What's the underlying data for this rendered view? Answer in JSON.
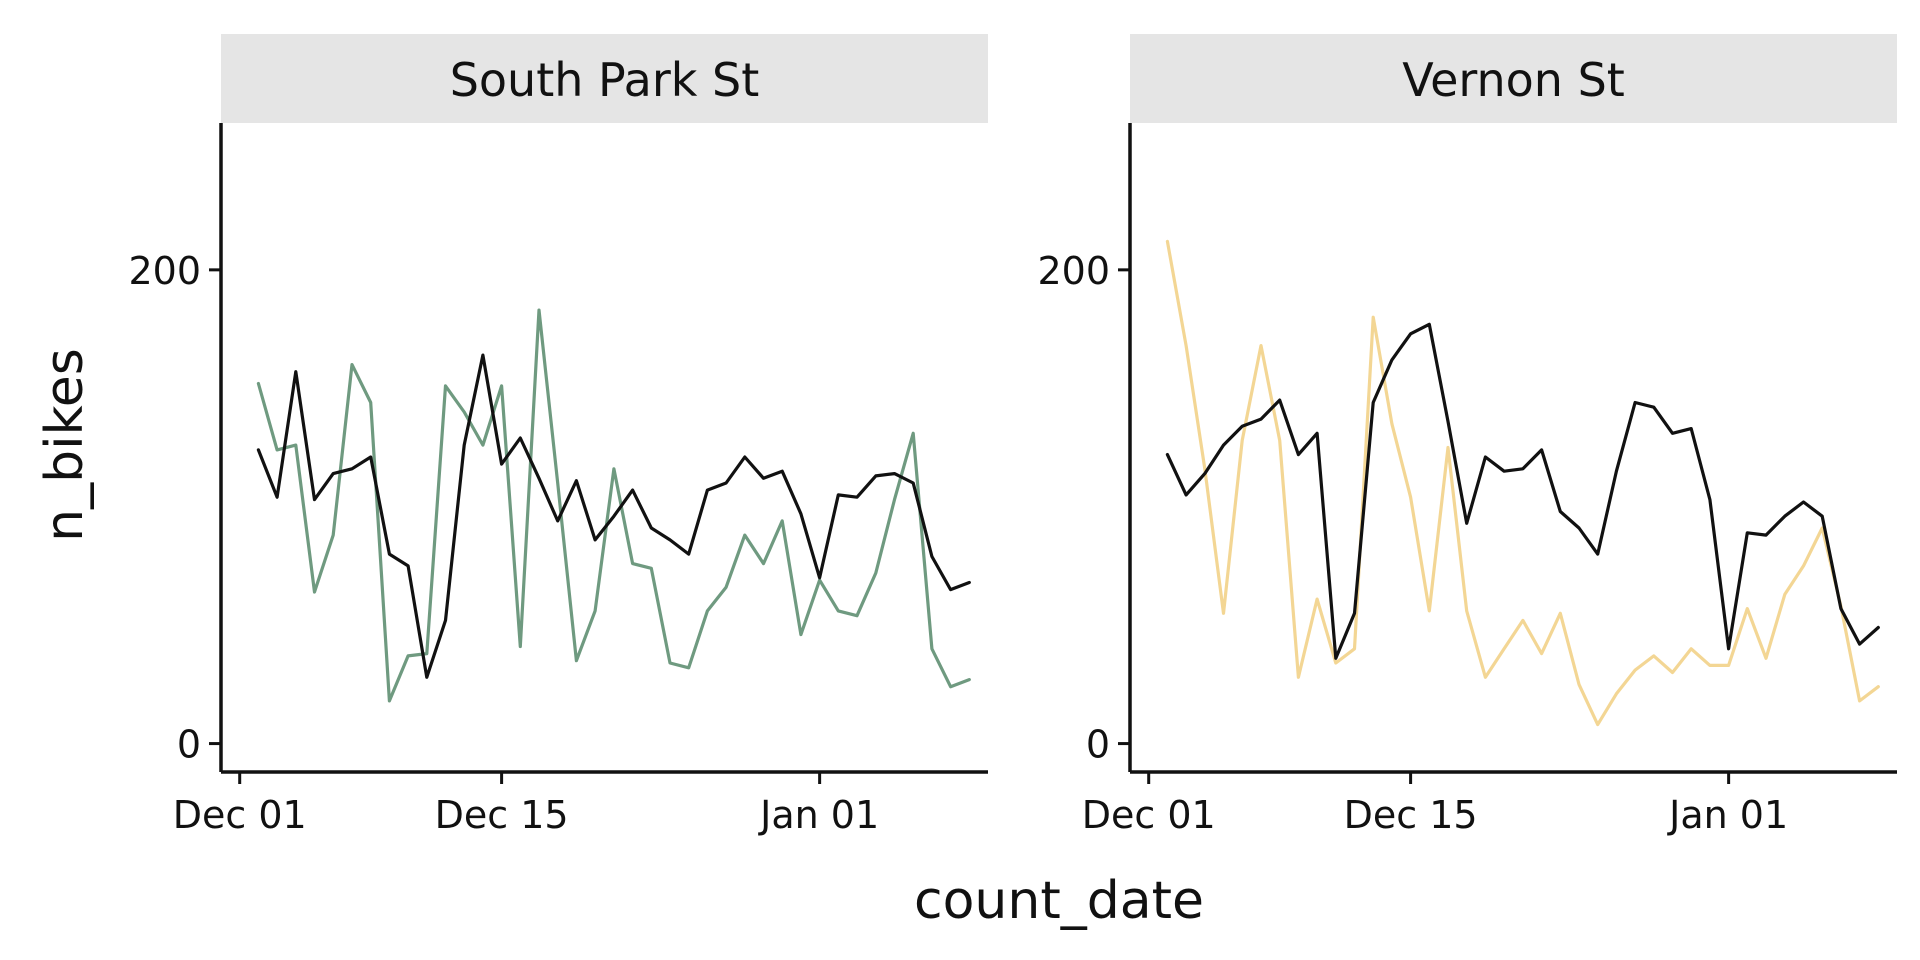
{
  "chart_data": {
    "type": "line",
    "xlabel": "count_date",
    "ylabel": "n_bikes",
    "ylim": [
      -12,
      262
    ],
    "xlim": [
      "2021-11-30",
      "2022-01-10"
    ],
    "x_ticks": [
      {
        "date": "2021-12-01",
        "label": "Dec 01"
      },
      {
        "date": "2021-12-15",
        "label": "Dec 15"
      },
      {
        "date": "2022-01-01",
        "label": "Jan 01"
      }
    ],
    "y_ticks": [
      {
        "value": 0,
        "label": "0"
      },
      {
        "value": 200,
        "label": "200"
      }
    ],
    "grid": false,
    "legend": "none",
    "x": [
      "2021-12-02",
      "2021-12-03",
      "2021-12-04",
      "2021-12-05",
      "2021-12-06",
      "2021-12-07",
      "2021-12-08",
      "2021-12-09",
      "2021-12-10",
      "2021-12-11",
      "2021-12-12",
      "2021-12-13",
      "2021-12-14",
      "2021-12-15",
      "2021-12-16",
      "2021-12-17",
      "2021-12-18",
      "2021-12-19",
      "2021-12-20",
      "2021-12-21",
      "2021-12-22",
      "2021-12-23",
      "2021-12-24",
      "2021-12-25",
      "2021-12-26",
      "2021-12-27",
      "2021-12-28",
      "2021-12-29",
      "2021-12-30",
      "2021-12-31",
      "2022-01-01",
      "2022-01-02",
      "2022-01-03",
      "2022-01-04",
      "2022-01-05",
      "2022-01-06",
      "2022-01-07",
      "2022-01-08",
      "2022-01-09"
    ],
    "panels": [
      {
        "title": "South Park St",
        "series": [
          {
            "color": "#6f9a80",
            "values": [
              152,
              124,
              126,
              64,
              88,
              160,
              144,
              18,
              37,
              38,
              151,
              140,
              126,
              151,
              41,
              183,
              110,
              35,
              56,
              116,
              76,
              74,
              34,
              32,
              56,
              66,
              88,
              76,
              94,
              46,
              69,
              56,
              54,
              72,
              103,
              131,
              40,
              24,
              27
            ]
          },
          {
            "color": "#111111",
            "values": [
              124,
              104,
              157,
              103,
              114,
              116,
              121,
              80,
              75,
              28,
              52,
              126,
              164,
              118,
              129,
              112,
              94,
              111,
              86,
              96,
              107,
              91,
              86,
              80,
              107,
              110,
              121,
              112,
              115,
              97,
              70,
              105,
              104,
              113,
              114,
              110,
              79,
              65,
              68
            ]
          }
        ]
      },
      {
        "title": "Vernon St",
        "series": [
          {
            "color": "#f3d694",
            "values": [
              212,
              168,
              116,
              55,
              128,
              168,
              128,
              28,
              61,
              34,
              40,
              180,
              135,
              104,
              56,
              125,
              56,
              28,
              40,
              52,
              38,
              55,
              25,
              8,
              21,
              31,
              37,
              30,
              40,
              33,
              33,
              57,
              36,
              63,
              75,
              91,
              58,
              18,
              24
            ]
          },
          {
            "color": "#111111",
            "values": [
              122,
              105,
              114,
              126,
              134,
              137,
              145,
              122,
              131,
              36,
              55,
              144,
              162,
              173,
              177,
              136,
              93,
              121,
              115,
              116,
              124,
              98,
              91,
              80,
              115,
              144,
              142,
              131,
              133,
              103,
              40,
              89,
              88,
              96,
              102,
              96,
              57,
              42,
              49
            ]
          }
        ]
      }
    ]
  }
}
